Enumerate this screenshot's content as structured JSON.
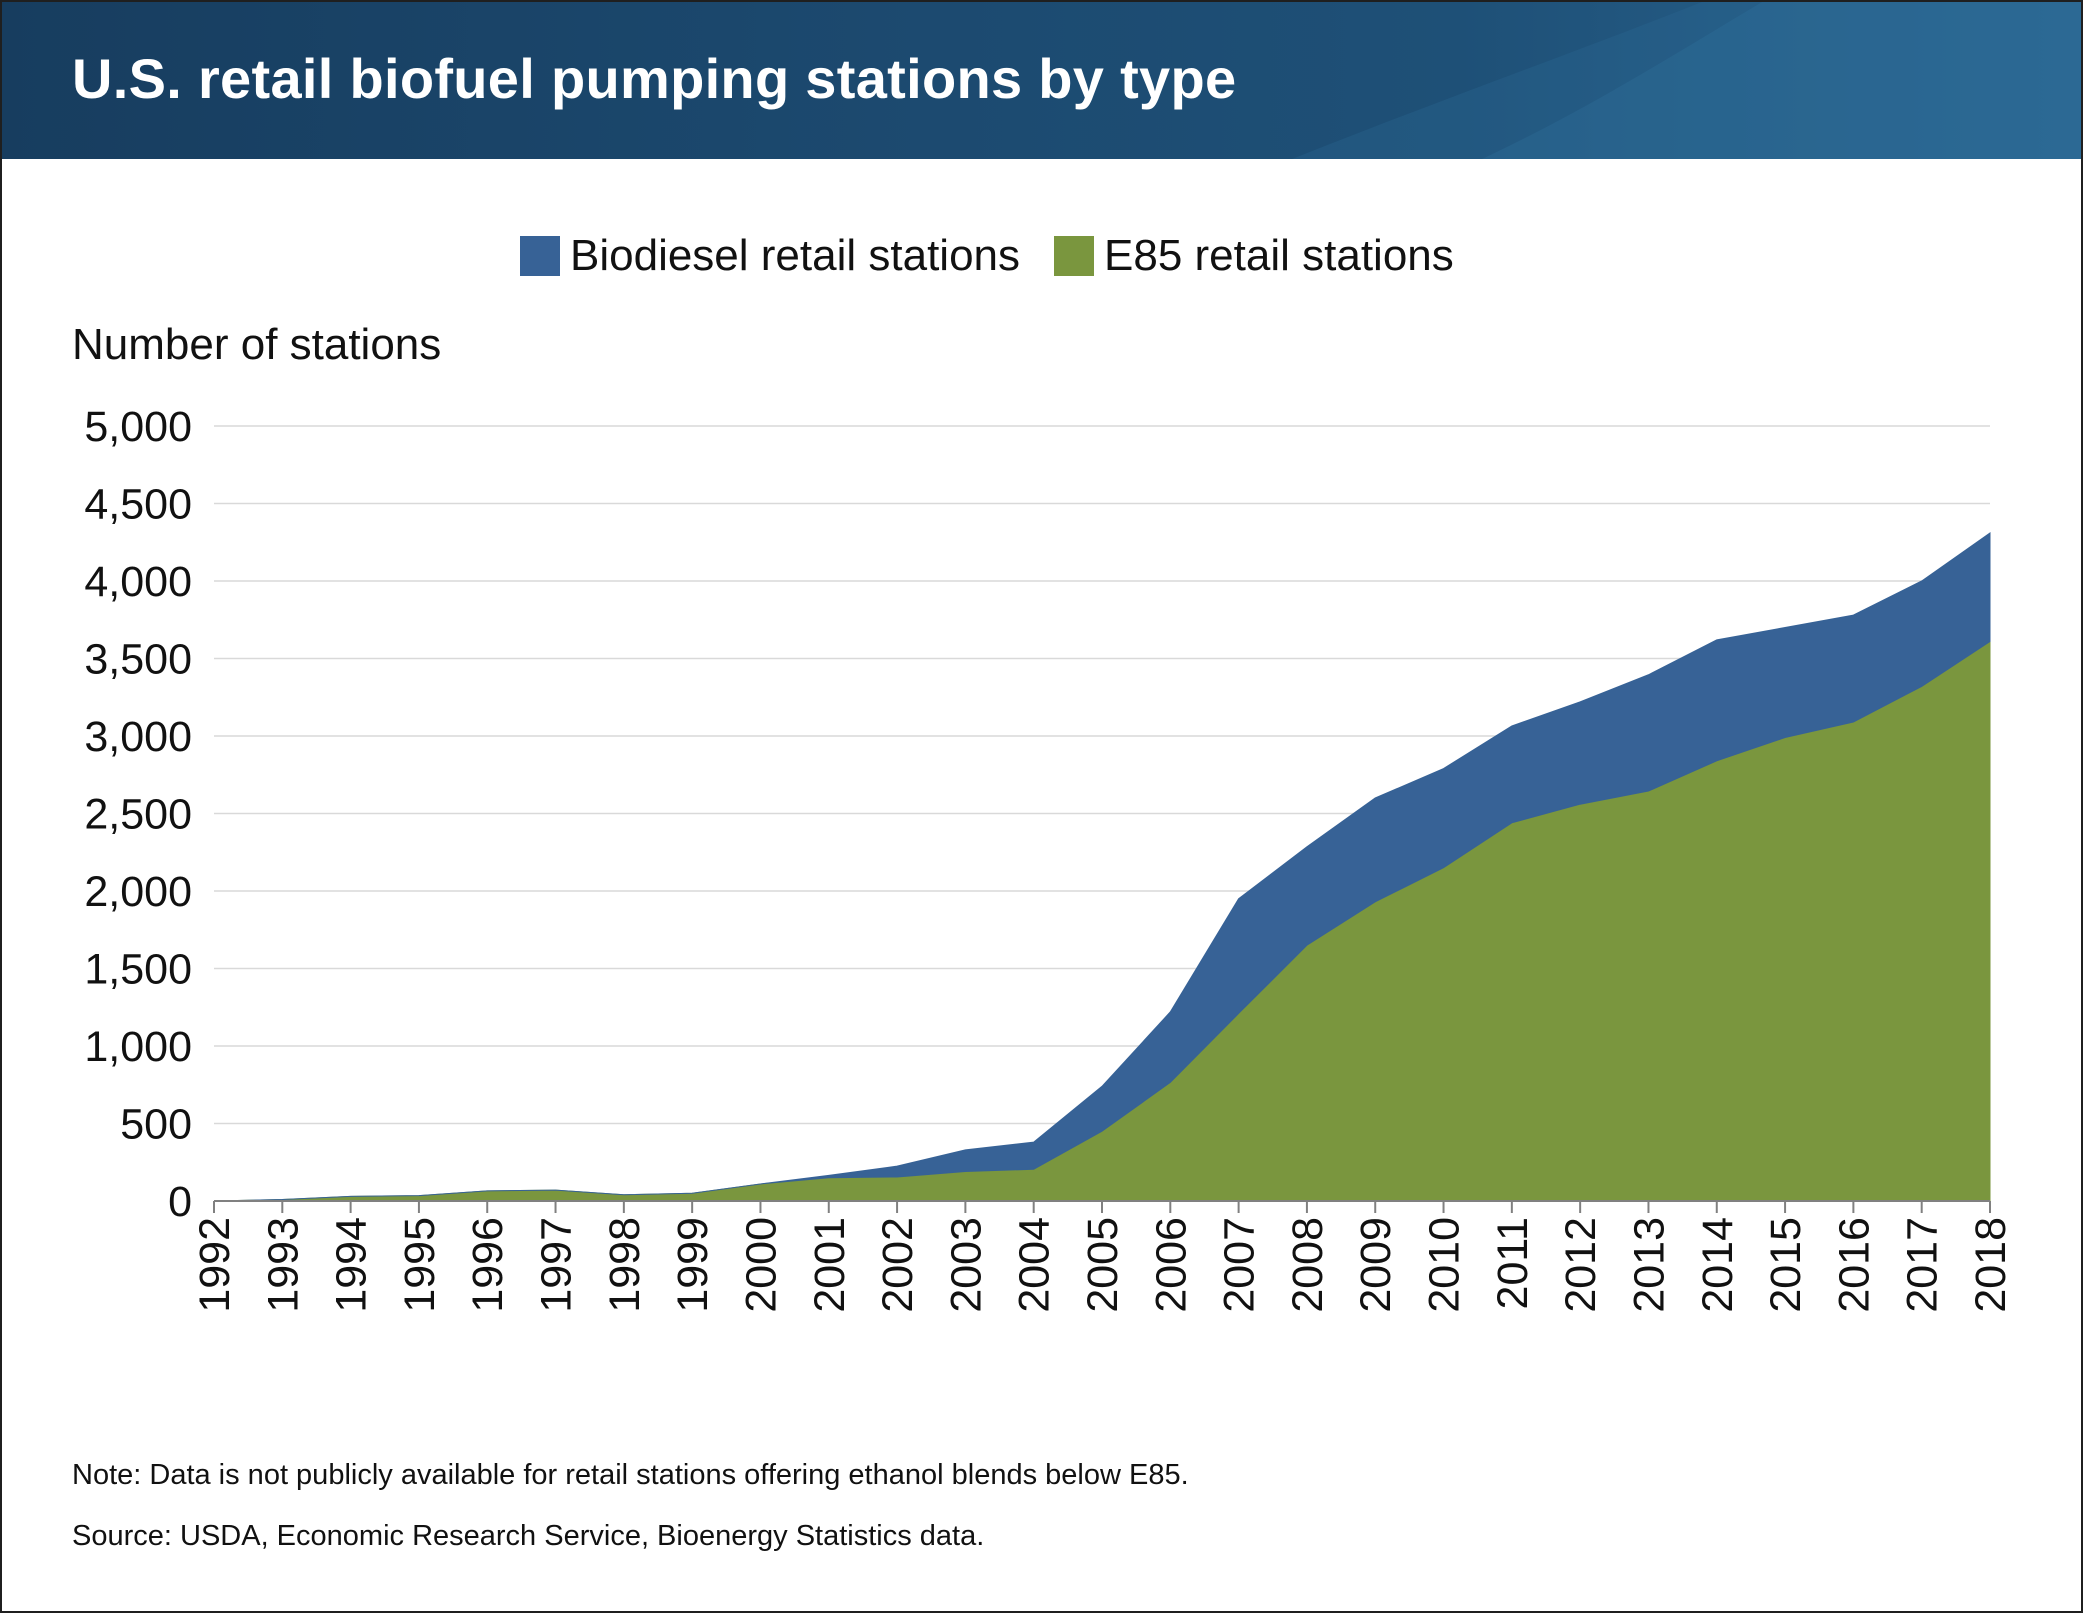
{
  "title": "U.S. retail biofuel pumping stations by type",
  "colors": {
    "biodiesel": "#376296",
    "e85": "#7a963e",
    "header": "#1c4a70",
    "grid": "#d9d9d9",
    "axis": "#808080"
  },
  "notes": {
    "note": "Note: Data is not publicly available for retail stations offering ethanol blends below E85.",
    "source": "Source: USDA, Economic Research Service, Bioenergy Statistics data."
  },
  "chart_data": {
    "type": "area",
    "stacked": true,
    "title": "U.S. retail biofuel pumping stations by type",
    "ylabel": "Number of stations",
    "xlabel": "",
    "ylim": [
      0,
      5000
    ],
    "yticks": [
      0,
      500,
      1000,
      1500,
      2000,
      2500,
      3000,
      3500,
      4000,
      4500,
      5000
    ],
    "ytick_labels": [
      "0",
      "500",
      "1,000",
      "1,500",
      "2,000",
      "2,500",
      "3,000",
      "3,500",
      "4,000",
      "4,500",
      "5,000"
    ],
    "grid": true,
    "legend": "top-center",
    "x": [
      "1992",
      "1993",
      "1994",
      "1995",
      "1996",
      "1997",
      "1998",
      "1999",
      "2000",
      "2001",
      "2002",
      "2003",
      "2004",
      "2005",
      "2006",
      "2007",
      "2008",
      "2009",
      "2010",
      "2011",
      "2012",
      "2013",
      "2014",
      "2015",
      "2016",
      "2017",
      "2018"
    ],
    "series": [
      {
        "name": "E85 retail stations",
        "color": "#7a963e",
        "values": [
          0,
          10,
          30,
          35,
          65,
          70,
          40,
          50,
          110,
          150,
          155,
          190,
          205,
          450,
          765,
          1210,
          1650,
          1930,
          2150,
          2440,
          2560,
          2645,
          2840,
          2990,
          3090,
          3320,
          3610
        ]
      },
      {
        "name": "Biodiesel retail stations",
        "color": "#376296",
        "values": [
          0,
          0,
          0,
          0,
          0,
          0,
          0,
          0,
          0,
          15,
          70,
          140,
          175,
          290,
          455,
          740,
          635,
          670,
          640,
          625,
          660,
          750,
          780,
          710,
          690,
          680,
          700
        ]
      }
    ]
  }
}
